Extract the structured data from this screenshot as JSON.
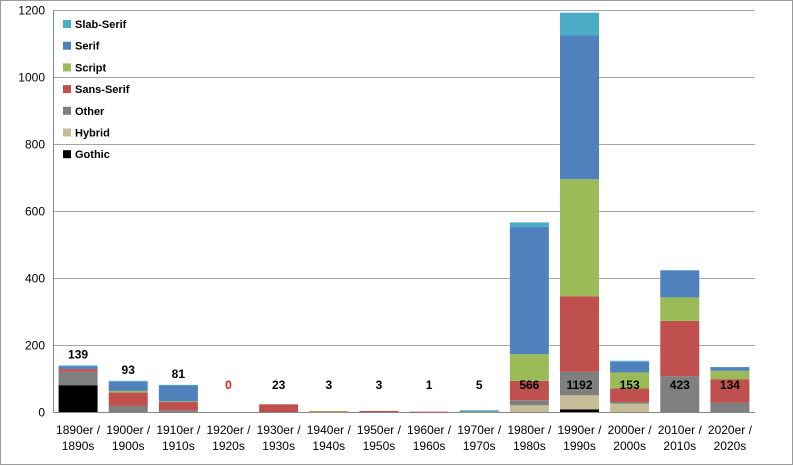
{
  "chart_data": {
    "type": "bar",
    "stacked": true,
    "categories": [
      [
        "1890er /",
        "1890s"
      ],
      [
        "1900er /",
        "1900s"
      ],
      [
        "1910er /",
        "1910s"
      ],
      [
        "1920er /",
        "1920s"
      ],
      [
        "1930er /",
        "1930s"
      ],
      [
        "1940er /",
        "1940s"
      ],
      [
        "1950er /",
        "1950s"
      ],
      [
        "1960er /",
        "1960s"
      ],
      [
        "1970er /",
        "1970s"
      ],
      [
        "1980er /",
        "1980s"
      ],
      [
        "1990er /",
        "1990s"
      ],
      [
        "2000er /",
        "2000s"
      ],
      [
        "2010er /",
        "2010s"
      ],
      [
        "2020er /",
        "2020s"
      ]
    ],
    "series": [
      {
        "name": "Gothic",
        "color": "#000000",
        "values": [
          80,
          0,
          0,
          0,
          0,
          0,
          0,
          0,
          0,
          0,
          8,
          0,
          0,
          0
        ]
      },
      {
        "name": "Hybrid",
        "color": "#c4bd97",
        "values": [
          0,
          0,
          0,
          0,
          0,
          1,
          0,
          0,
          0,
          20,
          42,
          25,
          0,
          0
        ]
      },
      {
        "name": "Other",
        "color": "#7f7f7f",
        "values": [
          40,
          18,
          5,
          0,
          0,
          0,
          0,
          0,
          0,
          15,
          70,
          5,
          107,
          28
        ]
      },
      {
        "name": "Sans-Serif",
        "color": "#c0504d",
        "values": [
          8,
          40,
          25,
          0,
          23,
          1,
          3,
          1,
          0,
          58,
          225,
          40,
          165,
          70
        ]
      },
      {
        "name": "Script",
        "color": "#9bbb59",
        "values": [
          0,
          5,
          2,
          0,
          0,
          1,
          0,
          0,
          1,
          80,
          350,
          48,
          70,
          25
        ]
      },
      {
        "name": "Serif",
        "color": "#4f81bd",
        "values": [
          8,
          27,
          47,
          0,
          0,
          0,
          0,
          0,
          2,
          380,
          430,
          32,
          81,
          11
        ]
      },
      {
        "name": "Slab-Serif",
        "color": "#4bacc6",
        "values": [
          3,
          3,
          2,
          0,
          0,
          0,
          0,
          0,
          2,
          13,
          67,
          3,
          0,
          0
        ]
      }
    ],
    "totals": [
      139,
      93,
      81,
      0,
      23,
      3,
      3,
      1,
      5,
      566,
      1192,
      153,
      423,
      134
    ],
    "total_label_color": "#000000",
    "zero_label_color": "#e0201b",
    "ylim": [
      0,
      1200
    ],
    "yticks": [
      0,
      200,
      400,
      600,
      800,
      1000,
      1200
    ],
    "grid": true,
    "legend_position": "top-left",
    "xlabel": "",
    "ylabel": "",
    "title": ""
  }
}
